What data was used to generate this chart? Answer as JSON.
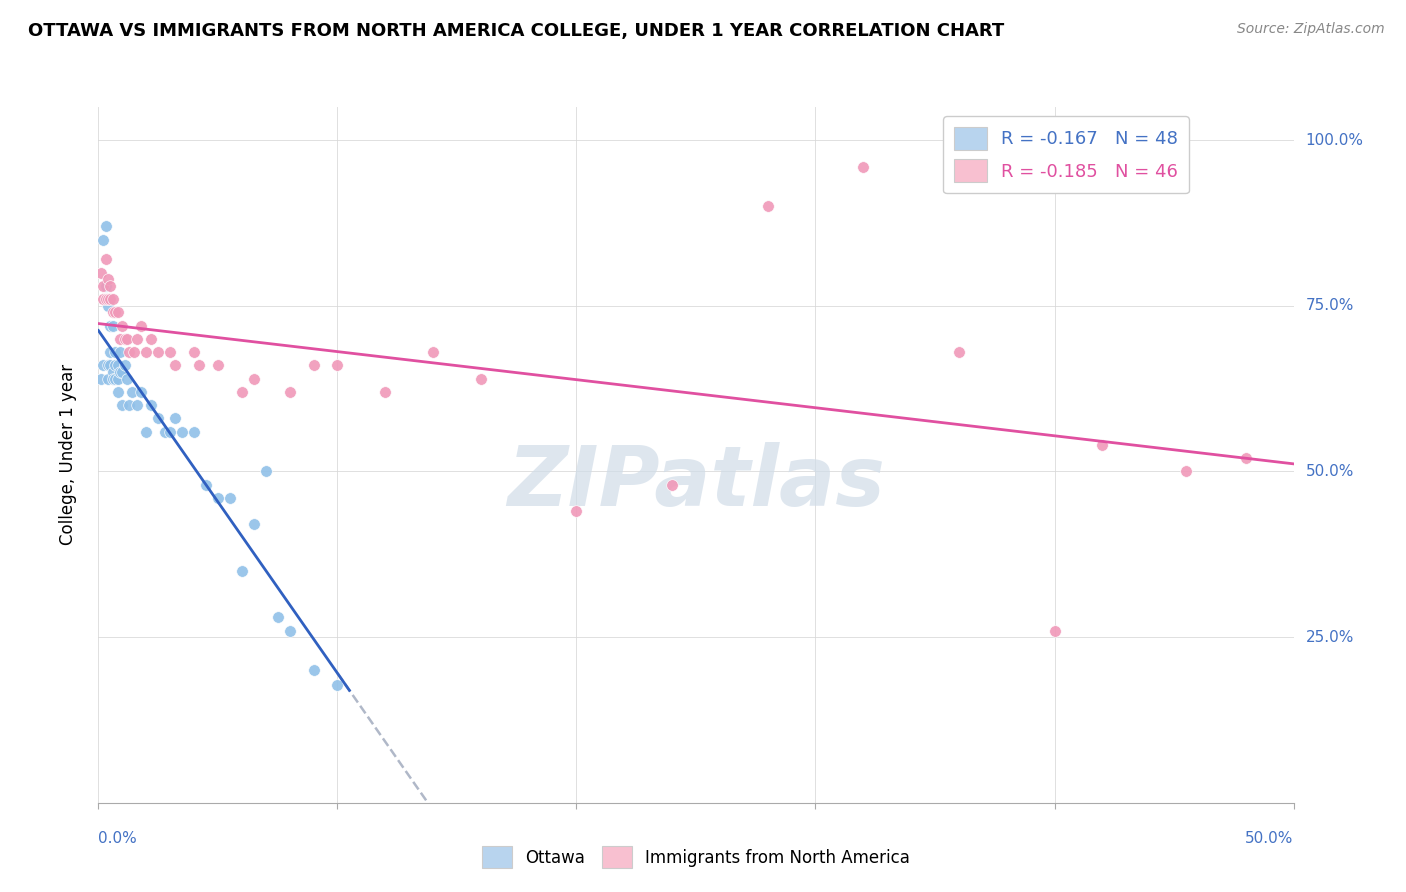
{
  "title": "OTTAWA VS IMMIGRANTS FROM NORTH AMERICA COLLEGE, UNDER 1 YEAR CORRELATION CHART",
  "source": "Source: ZipAtlas.com",
  "ylabel": "College, Under 1 year",
  "legend1_r": "R = -0.167",
  "legend1_n": "N = 48",
  "legend2_r": "R = -0.185",
  "legend2_n": "N = 46",
  "legend1_color": "#b8d4ee",
  "legend2_color": "#f8c0d0",
  "ottawa_color": "#90c0e8",
  "immigrants_color": "#f098b8",
  "trendline_ottawa_color": "#3060c0",
  "trendline_immigrants_color": "#e050a0",
  "trendline_dash_color": "#b0b8c8",
  "watermark": "ZIPatlas",
  "watermark_color": "#d0dce8",
  "xlim": [
    0.0,
    0.5
  ],
  "ylim": [
    0.0,
    1.05
  ],
  "ottawa_x": [
    0.001,
    0.002,
    0.002,
    0.003,
    0.003,
    0.004,
    0.004,
    0.004,
    0.005,
    0.005,
    0.005,
    0.006,
    0.006,
    0.006,
    0.007,
    0.007,
    0.007,
    0.008,
    0.008,
    0.008,
    0.009,
    0.009,
    0.01,
    0.01,
    0.011,
    0.012,
    0.013,
    0.014,
    0.016,
    0.018,
    0.02,
    0.022,
    0.025,
    0.028,
    0.03,
    0.032,
    0.035,
    0.04,
    0.045,
    0.05,
    0.055,
    0.06,
    0.065,
    0.07,
    0.075,
    0.08,
    0.09,
    0.1
  ],
  "ottawa_y": [
    0.64,
    0.66,
    0.85,
    0.87,
    0.78,
    0.66,
    0.64,
    0.75,
    0.68,
    0.66,
    0.72,
    0.65,
    0.64,
    0.72,
    0.66,
    0.64,
    0.68,
    0.64,
    0.66,
    0.62,
    0.65,
    0.68,
    0.65,
    0.6,
    0.66,
    0.64,
    0.6,
    0.62,
    0.6,
    0.62,
    0.56,
    0.6,
    0.58,
    0.56,
    0.56,
    0.58,
    0.56,
    0.56,
    0.48,
    0.46,
    0.46,
    0.35,
    0.42,
    0.5,
    0.28,
    0.26,
    0.2,
    0.178
  ],
  "immigrants_x": [
    0.001,
    0.002,
    0.002,
    0.003,
    0.003,
    0.004,
    0.004,
    0.005,
    0.005,
    0.006,
    0.006,
    0.007,
    0.008,
    0.009,
    0.01,
    0.011,
    0.012,
    0.013,
    0.015,
    0.016,
    0.018,
    0.02,
    0.022,
    0.025,
    0.03,
    0.032,
    0.04,
    0.042,
    0.05,
    0.06,
    0.065,
    0.08,
    0.09,
    0.1,
    0.12,
    0.14,
    0.16,
    0.2,
    0.24,
    0.28,
    0.32,
    0.36,
    0.4,
    0.42,
    0.455,
    0.48
  ],
  "immigrants_y": [
    0.8,
    0.78,
    0.76,
    0.82,
    0.76,
    0.79,
    0.76,
    0.78,
    0.76,
    0.76,
    0.74,
    0.74,
    0.74,
    0.7,
    0.72,
    0.7,
    0.7,
    0.68,
    0.68,
    0.7,
    0.72,
    0.68,
    0.7,
    0.68,
    0.68,
    0.66,
    0.68,
    0.66,
    0.66,
    0.62,
    0.64,
    0.62,
    0.66,
    0.66,
    0.62,
    0.68,
    0.64,
    0.44,
    0.48,
    0.9,
    0.96,
    0.68,
    0.26,
    0.54,
    0.5,
    0.52
  ]
}
